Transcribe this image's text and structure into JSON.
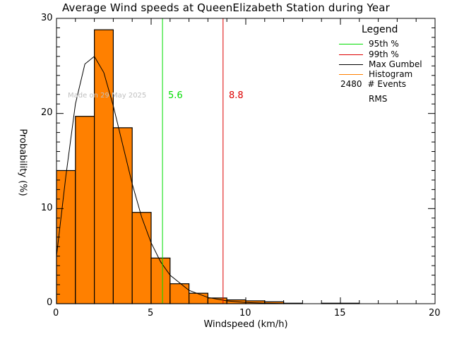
{
  "title": "Average Wind speeds at QueenElizabeth Station during Year",
  "xlabel": "Windspeed (km/h)",
  "ylabel": "Probability  (%)",
  "made_on": "Made on 29 May 2025",
  "percentile_95_label": "5.6",
  "percentile_99_label": "8.8",
  "legend": {
    "title": "Legend",
    "items": [
      {
        "label": "95th %",
        "color": "#00dd00"
      },
      {
        "label": "99th %",
        "color": "#dd0000"
      },
      {
        "label": "Max Gumbel",
        "color": "#000000"
      },
      {
        "label": "Histogram",
        "color": "#ff8000"
      }
    ],
    "events_count": "2480",
    "events_label": "# Events",
    "rms_label": "RMS"
  },
  "x_ticks": [
    "0",
    "5",
    "10",
    "15",
    "20"
  ],
  "y_ticks": [
    "0",
    "10",
    "20",
    "30"
  ],
  "colors": {
    "histogram_fill": "#ff8000",
    "p95": "#00dd00",
    "p99": "#dd0000",
    "gumbel": "#000000"
  },
  "chart_data": {
    "type": "bar",
    "title": "Average Wind speeds at QueenElizabeth Station during Year",
    "xlabel": "Windspeed (km/h)",
    "ylabel": "Probability (%)",
    "xlim": [
      0,
      20
    ],
    "ylim": [
      0,
      30
    ],
    "bin_edges": [
      0,
      1,
      2,
      3,
      4,
      5,
      6,
      7,
      8,
      9,
      10,
      11,
      12,
      13,
      14,
      15,
      16,
      17,
      18,
      19,
      20
    ],
    "categories": [
      "0-1",
      "1-2",
      "2-3",
      "3-4",
      "4-5",
      "5-6",
      "6-7",
      "7-8",
      "8-9",
      "9-10",
      "10-11",
      "11-12",
      "12-13",
      "13-14",
      "14-15",
      "15-16",
      "16-17",
      "17-18",
      "18-19",
      "19-20"
    ],
    "series": [
      {
        "name": "Histogram",
        "values": [
          14.0,
          19.7,
          28.8,
          18.5,
          9.6,
          4.8,
          2.1,
          1.1,
          0.6,
          0.4,
          0.3,
          0.2,
          0.05,
          0.0,
          0.05,
          0.05,
          0.0,
          0.0,
          0.0,
          0.0
        ]
      },
      {
        "name": "Max Gumbel",
        "type": "line",
        "x": [
          0,
          0.5,
          1,
          1.5,
          2,
          2.5,
          3,
          3.5,
          4,
          4.5,
          5,
          5.5,
          6,
          7,
          8,
          9,
          10,
          11,
          12
        ],
        "values": [
          5.0,
          13.5,
          21.0,
          25.2,
          26.0,
          24.3,
          20.8,
          16.7,
          12.6,
          9.1,
          6.4,
          4.4,
          3.0,
          1.4,
          0.65,
          0.3,
          0.13,
          0.05,
          0.02
        ]
      }
    ],
    "annotations": [
      {
        "name": "95th %",
        "x": 5.6,
        "label": "5.6",
        "color": "#00dd00"
      },
      {
        "name": "99th %",
        "x": 8.8,
        "label": "8.8",
        "color": "#dd0000"
      },
      {
        "text": "Made on 29 May 2025"
      }
    ],
    "legend": [
      "95th %",
      "99th %",
      "Max Gumbel",
      "Histogram",
      "2480 # Events",
      "RMS"
    ],
    "legend_position": "upper right",
    "grid": false
  }
}
